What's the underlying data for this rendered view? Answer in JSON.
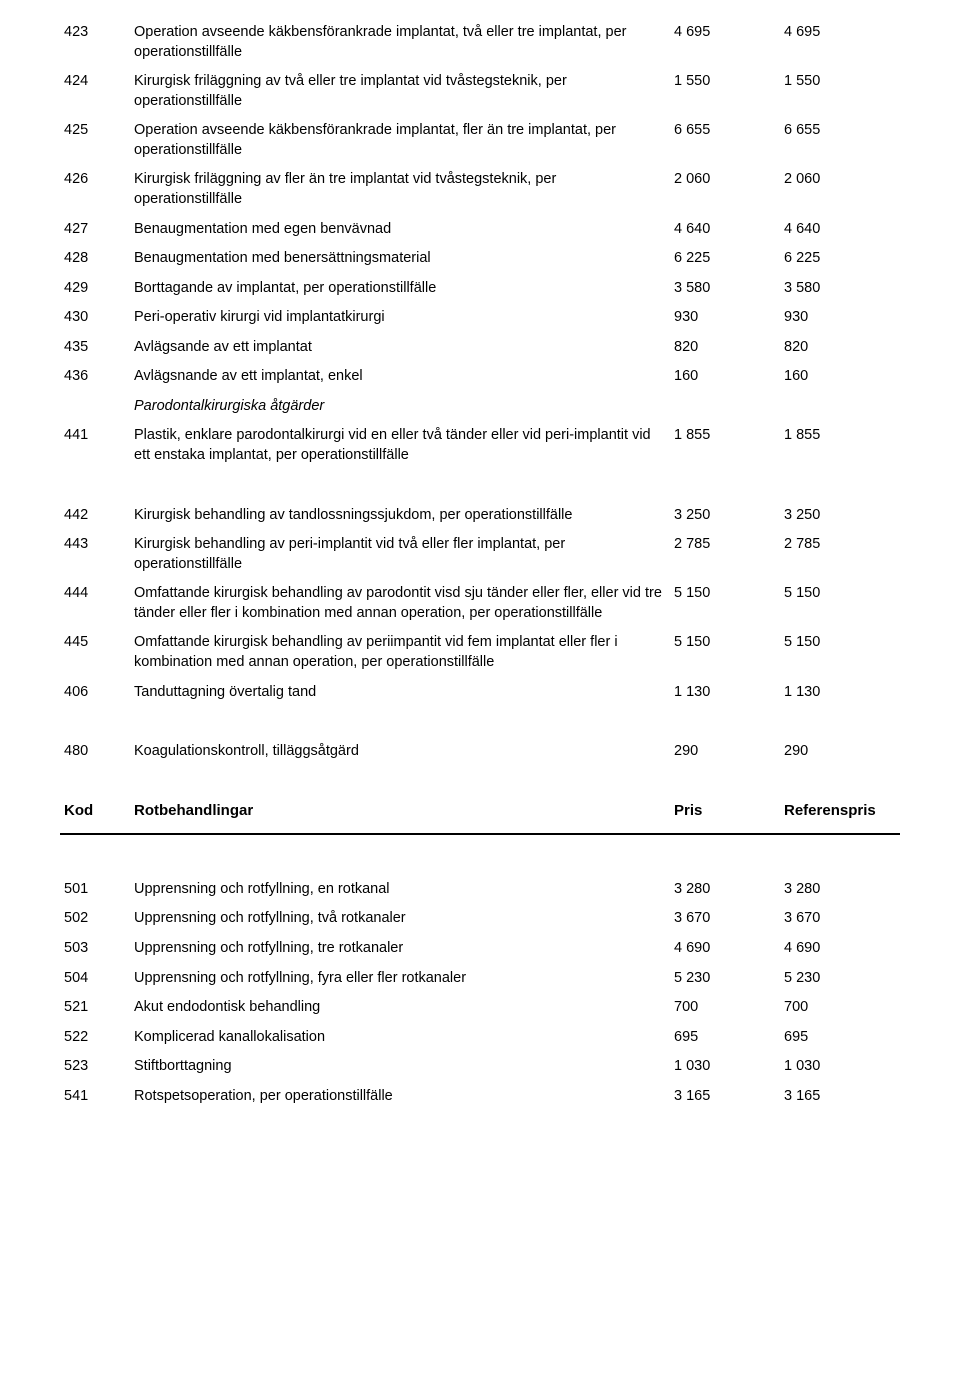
{
  "section1": {
    "rows": [
      {
        "code": "423",
        "desc": "Operation avseende käkbensförankrade implantat, två eller tre implantat, per operationstillfälle",
        "p1": "4 695",
        "p2": "4 695"
      },
      {
        "code": "424",
        "desc": "Kirurgisk friläggning av två eller tre implantat vid tvåstegsteknik, per operationstillfälle",
        "p1": "1 550",
        "p2": "1 550"
      },
      {
        "code": "425",
        "desc": "Operation avseende käkbensförankrade implantat, fler än tre implantat, per operationstillfälle",
        "p1": "6 655",
        "p2": "6 655"
      },
      {
        "code": "426",
        "desc": "Kirurgisk friläggning av fler än tre implantat vid tvåstegsteknik, per operationstillfälle",
        "p1": "2 060",
        "p2": "2 060"
      },
      {
        "code": "427",
        "desc": "Benaugmentation med egen benvävnad",
        "p1": "4 640",
        "p2": "4 640"
      },
      {
        "code": "428",
        "desc": "Benaugmentation med benersättningsmaterial",
        "p1": "6 225",
        "p2": "6 225"
      },
      {
        "code": "429",
        "desc": "Borttagande av implantat, per operationstillfälle",
        "p1": "3 580",
        "p2": "3 580"
      },
      {
        "code": "430",
        "desc": "Peri-operativ kirurgi vid implantatkirurgi",
        "p1": "930",
        "p2": "930"
      },
      {
        "code": "435",
        "desc": "Avlägsande av ett implantat",
        "p1": "820",
        "p2": "820"
      },
      {
        "code": "436",
        "desc": "Avlägsnande av ett implantat, enkel",
        "p1": "160",
        "p2": "160"
      }
    ],
    "subheading": "Parodontalkirurgiska åtgärder",
    "rows2": [
      {
        "code": "441",
        "desc": "Plastik, enklare parodontalkirurgi vid en eller två tänder eller vid peri-implantit vid ett enstaka implantat, per operationstillfälle",
        "p1": "1 855",
        "p2": "1 855"
      }
    ],
    "rows3": [
      {
        "code": "442",
        "desc": "Kirurgisk behandling av tandlossningssjukdom, per operationstillfälle",
        "p1": "3 250",
        "p2": "3 250"
      },
      {
        "code": "443",
        "desc": "Kirurgisk behandling av peri-implantit vid två eller fler implantat, per operationstillfälle",
        "p1": "2 785",
        "p2": "2 785"
      },
      {
        "code": "444",
        "desc": "Omfattande kirurgisk behandling av parodontit visd sju tänder eller fler, eller vid tre tänder eller fler i kombination med annan operation, per operationstillfälle",
        "p1": "5 150",
        "p2": "5 150",
        "clip": true
      },
      {
        "code": "445",
        "desc": "Omfattande kirurgisk behandling av periimpantit vid fem implantat eller fler i kombination med annan operation, per operationstillfälle",
        "p1": "5 150",
        "p2": "5 150"
      },
      {
        "code": "406",
        "desc": "Tanduttagning övertalig tand",
        "p1": "1 130",
        "p2": "1 130"
      }
    ],
    "rows4": [
      {
        "code": "480",
        "desc": "Koagulationskontroll, tilläggsåtgärd",
        "p1": "290",
        "p2": "290"
      }
    ]
  },
  "section2": {
    "header": {
      "c1": "Kod",
      "c2": "Rotbehandlingar",
      "c3": "Pris",
      "c4": "Referenspris"
    },
    "rows": [
      {
        "code": "501",
        "desc": "Upprensning och rotfyllning, en rotkanal",
        "p1": "3 280",
        "p2": "3 280"
      },
      {
        "code": "502",
        "desc": "Upprensning och rotfyllning, två rotkanaler",
        "p1": "3 670",
        "p2": "3 670"
      },
      {
        "code": "503",
        "desc": "Upprensning och rotfyllning, tre rotkanaler",
        "p1": "4 690",
        "p2": "4 690"
      },
      {
        "code": "504",
        "desc": "Upprensning och rotfyllning, fyra eller fler rotkanaler",
        "p1": "5 230",
        "p2": "5 230"
      },
      {
        "code": "521",
        "desc": "Akut endodontisk behandling",
        "p1": "700",
        "p2": "700"
      },
      {
        "code": "522",
        "desc": "Komplicerad kanallokalisation",
        "p1": "695",
        "p2": "695"
      },
      {
        "code": "523",
        "desc": "Stiftborttagning",
        "p1": "1 030",
        "p2": "1 030"
      },
      {
        "code": "541",
        "desc": "Rotspetsoperation, per operationstillfälle",
        "p1": "3 165",
        "p2": "3 165"
      }
    ]
  }
}
